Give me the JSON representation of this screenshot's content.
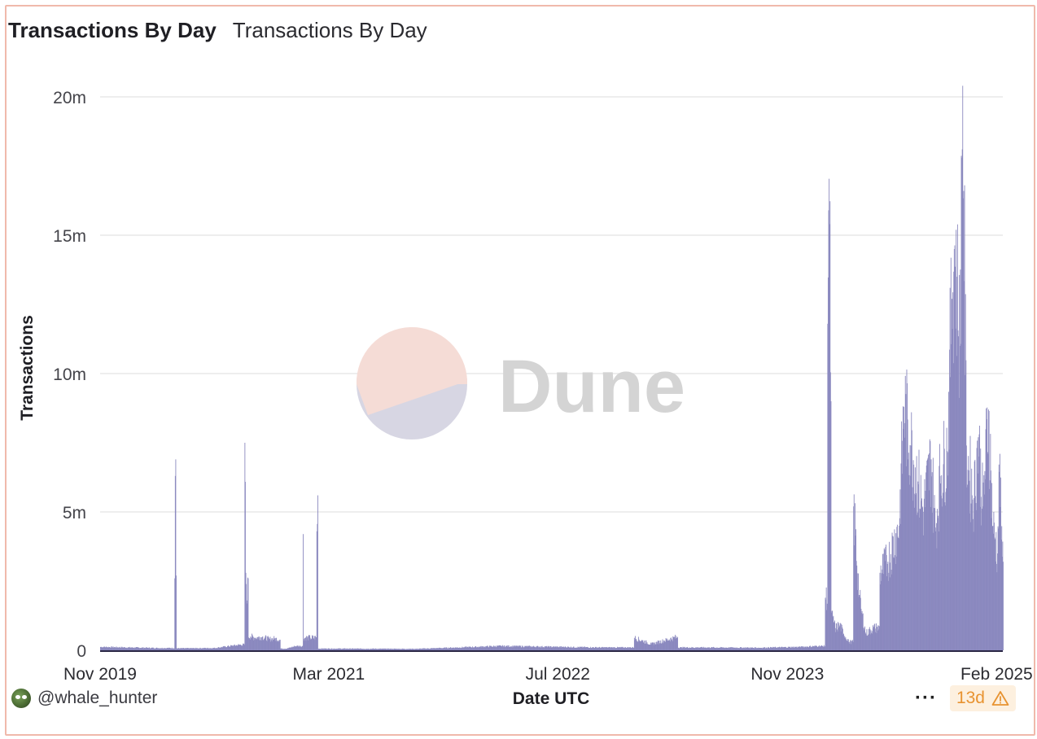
{
  "header": {
    "title": "Transactions By Day",
    "subtitle": "Transactions By Day"
  },
  "watermark": {
    "text": "Dune"
  },
  "footer": {
    "username": "@whale_hunter",
    "more_label": "···",
    "freshness": "13d"
  },
  "colors": {
    "bar": "#8b89bf",
    "border": "#f0b9ab",
    "grid": "#e3e3e3",
    "baseline": "#2a2745",
    "warning": "#e89331"
  },
  "chart_data": {
    "type": "bar",
    "title": "Transactions By Day",
    "xlabel": "Date UTC",
    "ylabel": "Transactions",
    "x_range": [
      "2019-11-01",
      "2025-02-01"
    ],
    "ylim": [
      0,
      20000000
    ],
    "y_ticks": [
      {
        "value": 0,
        "label": "0"
      },
      {
        "value": 5000000,
        "label": "5m"
      },
      {
        "value": 10000000,
        "label": "10m"
      },
      {
        "value": 15000000,
        "label": "15m"
      },
      {
        "value": 20000000,
        "label": "20m"
      }
    ],
    "x_ticks": [
      {
        "date": "2019-11-01",
        "label": "Nov 2019"
      },
      {
        "date": "2021-03-01",
        "label": "Mar 2021"
      },
      {
        "date": "2022-07-01",
        "label": "Jul 2022"
      },
      {
        "date": "2023-11-01",
        "label": "Nov 2023"
      },
      {
        "date": "2025-02-01",
        "label": "Feb 2025"
      }
    ],
    "grid": true,
    "legend": "none",
    "series": [
      {
        "points": [
          [
            "2019-11-01",
            120000
          ],
          [
            "2020-01-01",
            100000
          ],
          [
            "2020-03-01",
            80000
          ],
          [
            "2020-04-07",
            2600000
          ],
          [
            "2020-04-08",
            6300000
          ],
          [
            "2020-04-09",
            6900000
          ],
          [
            "2020-04-10",
            2700000
          ],
          [
            "2020-05-01",
            70000
          ],
          [
            "2020-07-01",
            80000
          ],
          [
            "2020-08-25",
            200000
          ],
          [
            "2020-09-03",
            7500000
          ],
          [
            "2020-09-05",
            2800000
          ],
          [
            "2020-09-08",
            1800000
          ],
          [
            "2020-09-10",
            2600000
          ],
          [
            "2020-09-15",
            500000
          ],
          [
            "2020-09-25",
            450000
          ],
          [
            "2020-10-10",
            480000
          ],
          [
            "2020-10-25",
            400000
          ],
          [
            "2020-11-05",
            420000
          ],
          [
            "2020-11-17",
            380000
          ],
          [
            "2020-12-01",
            60000
          ],
          [
            "2020-12-20",
            150000
          ],
          [
            "2021-01-05",
            4200000
          ],
          [
            "2021-01-20",
            450000
          ],
          [
            "2021-02-03",
            4300000
          ],
          [
            "2021-02-05",
            5600000
          ],
          [
            "2021-03-01",
            60000
          ],
          [
            "2021-09-01",
            50000
          ],
          [
            "2022-03-01",
            150000
          ],
          [
            "2022-07-01",
            120000
          ],
          [
            "2022-10-01",
            100000
          ],
          [
            "2022-12-10",
            450000
          ],
          [
            "2023-01-15",
            220000
          ],
          [
            "2023-03-12",
            480000
          ],
          [
            "2023-05-01",
            100000
          ],
          [
            "2023-09-01",
            90000
          ],
          [
            "2023-12-01",
            120000
          ],
          [
            "2024-01-05",
            150000
          ],
          [
            "2024-01-20",
            1900000
          ],
          [
            "2024-01-25",
            11800000
          ],
          [
            "2024-01-27",
            15900000
          ],
          [
            "2024-01-29",
            15400000
          ],
          [
            "2024-02-01",
            9000000
          ],
          [
            "2024-02-05",
            1200000
          ],
          [
            "2024-02-10",
            800000
          ],
          [
            "2024-02-20",
            900000
          ],
          [
            "2024-02-28",
            600000
          ],
          [
            "2024-03-10",
            300000
          ],
          [
            "2024-03-20",
            5200000
          ],
          [
            "2024-04-01",
            2000000
          ],
          [
            "2024-04-05",
            1500000
          ],
          [
            "2024-04-15",
            600000
          ],
          [
            "2024-05-01",
            800000
          ],
          [
            "2024-05-15",
            2800000
          ],
          [
            "2024-06-01",
            3200000
          ],
          [
            "2024-06-25",
            4500000
          ],
          [
            "2024-07-05",
            8800000
          ],
          [
            "2024-07-20",
            7400000
          ],
          [
            "2024-08-05",
            6000000
          ],
          [
            "2024-08-15",
            5000000
          ],
          [
            "2024-09-01",
            6900000
          ],
          [
            "2024-09-10",
            4300000
          ],
          [
            "2024-09-20",
            6300000
          ],
          [
            "2024-10-05",
            7200000
          ],
          [
            "2024-10-15",
            12700000
          ],
          [
            "2024-10-20",
            14500000
          ],
          [
            "2024-10-25",
            13500000
          ],
          [
            "2024-11-01",
            11000000
          ],
          [
            "2024-11-05",
            17800000
          ],
          [
            "2024-11-07",
            20400000
          ],
          [
            "2024-11-09",
            16600000
          ],
          [
            "2024-11-15",
            7400000
          ],
          [
            "2024-11-20",
            6500000
          ],
          [
            "2024-12-01",
            5500000
          ],
          [
            "2024-12-10",
            7700000
          ],
          [
            "2024-12-20",
            5200000
          ],
          [
            "2025-01-01",
            8700000
          ],
          [
            "2025-01-10",
            4500000
          ],
          [
            "2025-01-20",
            3500000
          ],
          [
            "2025-01-25",
            7100000
          ],
          [
            "2025-01-28",
            4000000
          ],
          [
            "2025-02-01",
            3200000
          ]
        ]
      }
    ]
  }
}
